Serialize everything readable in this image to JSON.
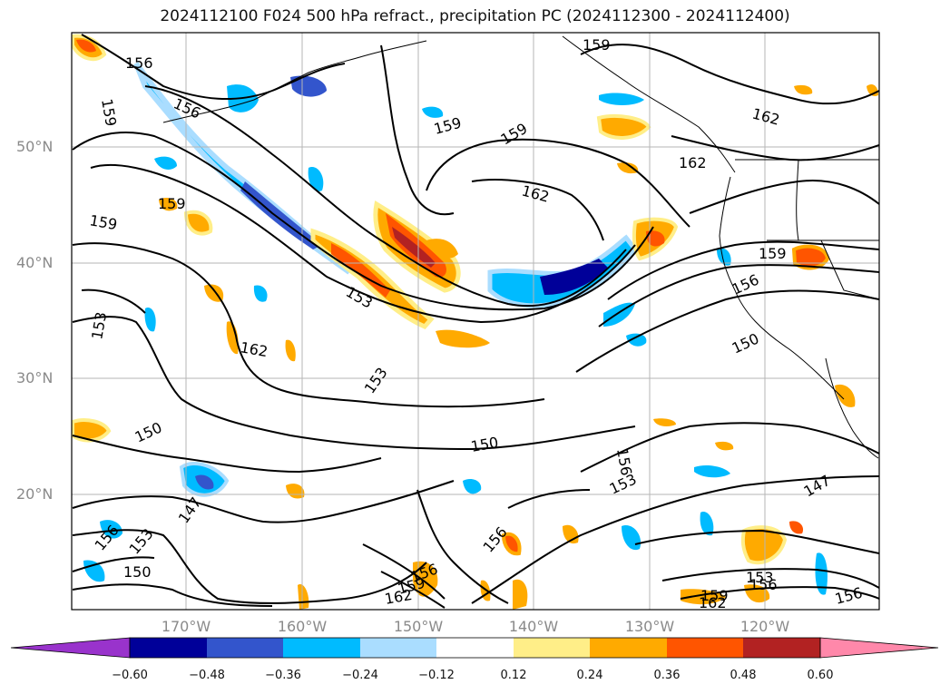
{
  "title": "2024112100 F024 500 hPa refract., precipitation PC (2024112300 - 2024112400)",
  "lat_labels": [
    "50°N",
    "40°N",
    "30°N",
    "20°N"
  ],
  "lon_labels": [
    "170°W",
    "160°W",
    "150°W",
    "140°W",
    "130°W",
    "120°W"
  ],
  "colorbar": {
    "ticks": [
      "−0.60",
      "−0.48",
      "−0.36",
      "−0.24",
      "−0.12",
      "0.12",
      "0.24",
      "0.36",
      "0.48",
      "0.60"
    ],
    "colors": [
      "#9933cc",
      "#000099",
      "#3355cc",
      "#00bbff",
      "#aaddff",
      "#ffffff",
      "#ffee88",
      "#ffaa00",
      "#ff5500",
      "#b22222",
      "#ff88aa"
    ]
  },
  "contour_labels": [
    "156",
    "159",
    "156",
    "159",
    "162",
    "159",
    "159",
    "162",
    "162",
    "159",
    "159",
    "153",
    "162",
    "153",
    "153",
    "150",
    "150",
    "159",
    "156",
    "150",
    "156",
    "153",
    "147",
    "156",
    "153",
    "150",
    "147",
    "156",
    "156",
    "159",
    "162",
    "159",
    "162",
    "153",
    "156",
    "156"
  ]
}
